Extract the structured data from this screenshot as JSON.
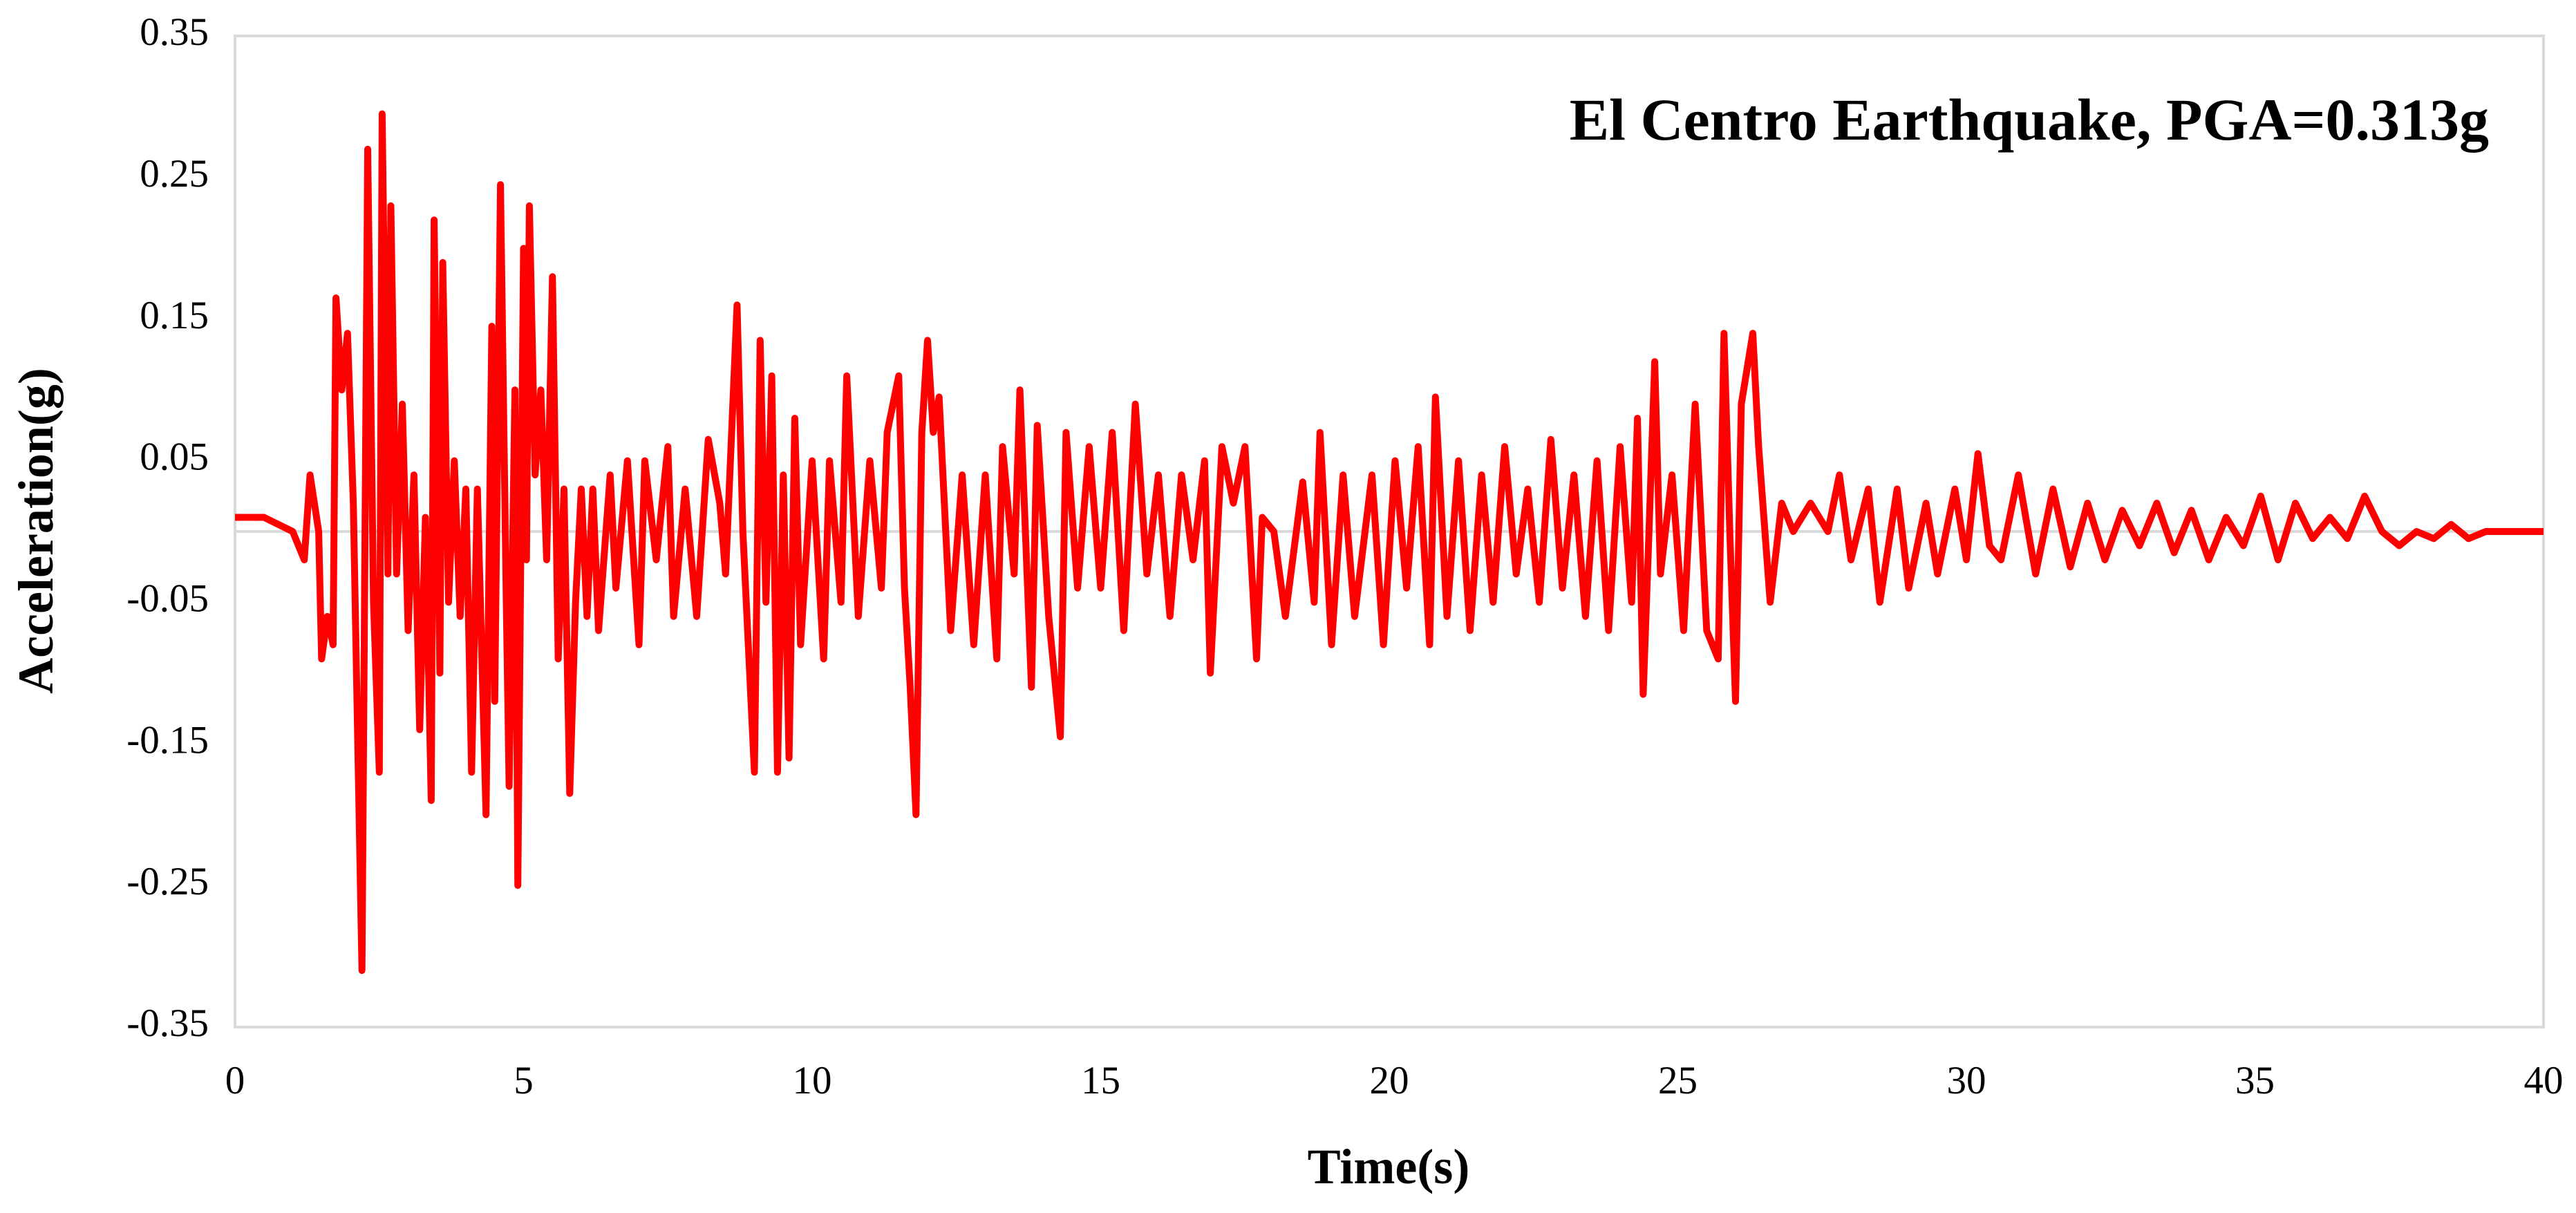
{
  "chart_data": {
    "type": "line",
    "title": "El Centro Earthquake, PGA=0.313g",
    "x_label": "Time(s)",
    "y_label": "Acceleration(g)",
    "xlim": [
      0,
      40
    ],
    "xticks": [
      0,
      5,
      10,
      15,
      20,
      25,
      30,
      35,
      40
    ],
    "ylim": [
      -0.35,
      0.35
    ],
    "yticks": [
      -0.35,
      -0.25,
      -0.15,
      -0.05,
      0.05,
      0.15,
      0.25,
      0.35
    ],
    "grid": false,
    "x": [
      0,
      0.5,
      1.0,
      1.2,
      1.3,
      1.45,
      1.5,
      1.6,
      1.7,
      1.75,
      1.85,
      1.95,
      2.05,
      2.2,
      2.3,
      2.4,
      2.5,
      2.55,
      2.65,
      2.7,
      2.8,
      2.9,
      3.0,
      3.1,
      3.2,
      3.3,
      3.4,
      3.45,
      3.55,
      3.6,
      3.7,
      3.8,
      3.9,
      4.0,
      4.1,
      4.2,
      4.35,
      4.45,
      4.5,
      4.6,
      4.7,
      4.75,
      4.85,
      4.9,
      5.0,
      5.05,
      5.1,
      5.2,
      5.3,
      5.4,
      5.5,
      5.6,
      5.7,
      5.8,
      5.9,
      6.0,
      6.1,
      6.2,
      6.3,
      6.5,
      6.6,
      6.8,
      7.0,
      7.1,
      7.3,
      7.5,
      7.6,
      7.8,
      8.0,
      8.2,
      8.4,
      8.5,
      8.7,
      8.8,
      9.0,
      9.1,
      9.2,
      9.3,
      9.4,
      9.5,
      9.6,
      9.7,
      9.8,
      10.0,
      10.2,
      10.3,
      10.5,
      10.6,
      10.8,
      11.0,
      11.2,
      11.3,
      11.5,
      11.6,
      11.7,
      11.8,
      11.9,
      12.0,
      12.1,
      12.2,
      12.4,
      12.6,
      12.8,
      13.0,
      13.2,
      13.3,
      13.5,
      13.6,
      13.8,
      13.9,
      14.1,
      14.3,
      14.4,
      14.6,
      14.8,
      15.0,
      15.2,
      15.4,
      15.6,
      15.8,
      16.0,
      16.2,
      16.4,
      16.6,
      16.8,
      16.9,
      17.1,
      17.3,
      17.5,
      17.7,
      17.8,
      18.0,
      18.2,
      18.5,
      18.7,
      18.8,
      19.0,
      19.2,
      19.4,
      19.7,
      19.9,
      20.1,
      20.3,
      20.5,
      20.7,
      20.8,
      21.0,
      21.2,
      21.4,
      21.6,
      21.8,
      22.0,
      22.2,
      22.4,
      22.6,
      22.8,
      23.0,
      23.2,
      23.4,
      23.6,
      23.8,
      24.0,
      24.2,
      24.3,
      24.4,
      24.5,
      24.6,
      24.7,
      24.9,
      25.1,
      25.3,
      25.5,
      25.7,
      25.8,
      25.9,
      26.0,
      26.1,
      26.3,
      26.4,
      26.6,
      26.8,
      27.0,
      27.3,
      27.6,
      27.8,
      28.0,
      28.3,
      28.5,
      28.8,
      29.0,
      29.3,
      29.5,
      29.8,
      30.0,
      30.2,
      30.4,
      30.6,
      30.9,
      31.2,
      31.5,
      31.8,
      32.1,
      32.4,
      32.7,
      33.0,
      33.3,
      33.6,
      33.9,
      34.2,
      34.5,
      34.8,
      35.1,
      35.4,
      35.7,
      36.0,
      36.3,
      36.6,
      36.9,
      37.2,
      37.5,
      37.8,
      38.1,
      38.4,
      38.7,
      39.0,
      39.5,
      40.0
    ],
    "series": [
      {
        "name": "Acceleration",
        "color": "#ff0000",
        "values": [
          0.01,
          0.01,
          0.0,
          -0.02,
          0.04,
          0.0,
          -0.09,
          -0.06,
          -0.08,
          0.165,
          0.1,
          0.14,
          0.02,
          -0.31,
          0.27,
          -0.05,
          -0.17,
          0.295,
          -0.03,
          0.23,
          -0.03,
          0.09,
          -0.07,
          0.04,
          -0.14,
          0.01,
          -0.19,
          0.22,
          -0.1,
          0.19,
          -0.05,
          0.05,
          -0.06,
          0.03,
          -0.17,
          0.03,
          -0.2,
          0.145,
          -0.12,
          0.245,
          -0.05,
          -0.18,
          0.1,
          -0.25,
          0.2,
          -0.02,
          0.23,
          0.04,
          0.1,
          -0.02,
          0.18,
          -0.09,
          0.03,
          -0.185,
          -0.05,
          0.03,
          -0.06,
          0.03,
          -0.07,
          0.04,
          -0.04,
          0.05,
          -0.08,
          0.05,
          -0.02,
          0.06,
          -0.06,
          0.03,
          -0.06,
          0.065,
          0.02,
          -0.03,
          0.16,
          0.0,
          -0.17,
          0.135,
          -0.05,
          0.11,
          -0.17,
          0.04,
          -0.16,
          0.08,
          -0.08,
          0.05,
          -0.09,
          0.05,
          -0.05,
          0.11,
          -0.06,
          0.05,
          -0.04,
          0.07,
          0.11,
          -0.04,
          -0.11,
          -0.2,
          0.07,
          0.135,
          0.07,
          0.095,
          -0.07,
          0.04,
          -0.08,
          0.04,
          -0.09,
          0.06,
          -0.03,
          0.1,
          -0.11,
          0.075,
          -0.06,
          -0.145,
          0.07,
          -0.04,
          0.06,
          -0.04,
          0.07,
          -0.07,
          0.09,
          -0.03,
          0.04,
          -0.06,
          0.04,
          -0.02,
          0.05,
          -0.1,
          0.06,
          0.02,
          0.06,
          -0.09,
          0.01,
          0.0,
          -0.06,
          0.035,
          -0.05,
          0.07,
          -0.08,
          0.04,
          -0.06,
          0.04,
          -0.08,
          0.05,
          -0.04,
          0.06,
          -0.08,
          0.095,
          -0.06,
          0.05,
          -0.07,
          0.04,
          -0.05,
          0.06,
          -0.03,
          0.03,
          -0.05,
          0.065,
          -0.04,
          0.04,
          -0.06,
          0.05,
          -0.07,
          0.06,
          -0.05,
          0.08,
          -0.115,
          0.0,
          0.12,
          -0.03,
          0.04,
          -0.07,
          0.09,
          -0.07,
          -0.09,
          0.14,
          0.0,
          -0.12,
          0.09,
          0.14,
          0.06,
          -0.05,
          0.02,
          0.0,
          0.02,
          0.0,
          0.04,
          -0.02,
          0.03,
          -0.05,
          0.03,
          -0.04,
          0.02,
          -0.03,
          0.03,
          -0.02,
          0.055,
          -0.01,
          -0.02,
          0.04,
          -0.03,
          0.03,
          -0.025,
          0.02,
          -0.02,
          0.015,
          -0.01,
          0.02,
          -0.015,
          0.015,
          -0.02,
          0.01,
          -0.01,
          0.025,
          -0.02,
          0.02,
          -0.005,
          0.01,
          -0.005,
          0.025,
          0.0,
          -0.01,
          0.0,
          -0.005,
          0.005,
          -0.005,
          0.0,
          0.0,
          0.0
        ]
      }
    ]
  }
}
